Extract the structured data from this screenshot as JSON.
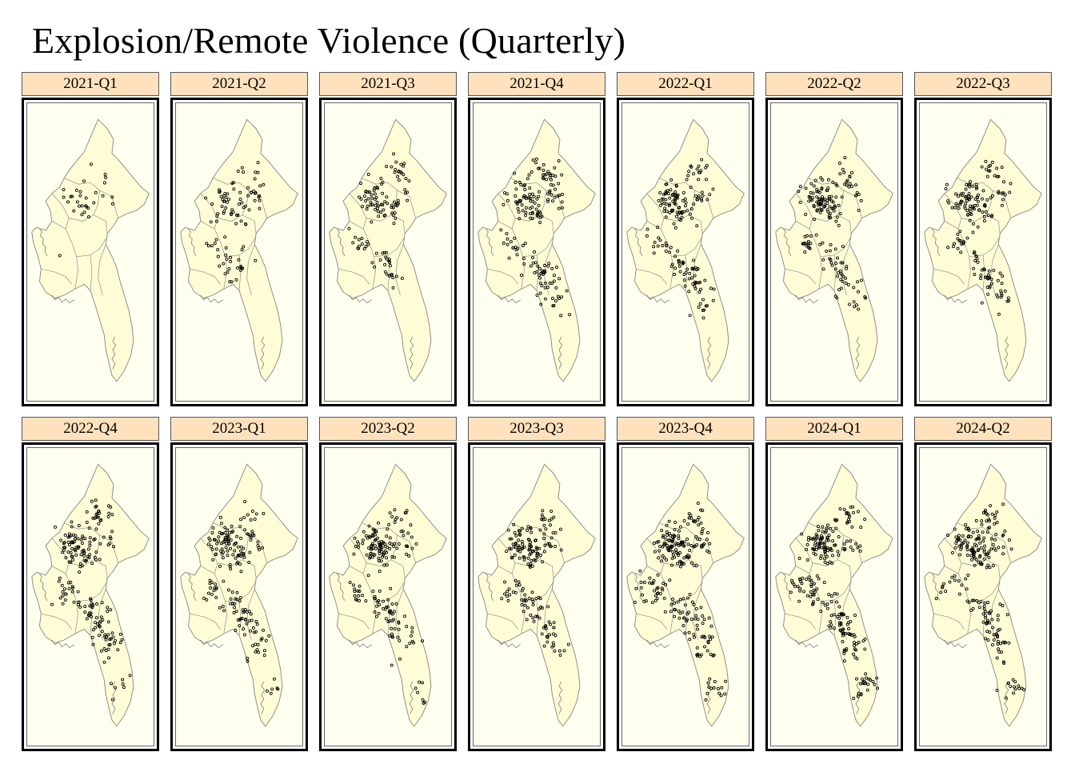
{
  "title": "Explosion/Remote Violence (Quarterly)",
  "map": {
    "country": "Myanmar",
    "land_color": "#fffcd6",
    "background_color": "#fffff0",
    "border_color": "#8c8c8c",
    "marker": "hollow circle",
    "marker_color": "#000000",
    "strip_color": "#ffe2bd"
  },
  "panels": [
    {
      "label": "2021-Q1",
      "intensity": 0.07
    },
    {
      "label": "2021-Q2",
      "intensity": 0.32
    },
    {
      "label": "2021-Q3",
      "intensity": 0.42
    },
    {
      "label": "2021-Q4",
      "intensity": 0.62
    },
    {
      "label": "2022-Q1",
      "intensity": 0.62
    },
    {
      "label": "2022-Q2",
      "intensity": 0.62
    },
    {
      "label": "2022-Q3",
      "intensity": 0.58
    },
    {
      "label": "2022-Q4",
      "intensity": 0.72
    },
    {
      "label": "2023-Q1",
      "intensity": 0.68
    },
    {
      "label": "2023-Q2",
      "intensity": 0.68
    },
    {
      "label": "2023-Q3",
      "intensity": 0.62
    },
    {
      "label": "2023-Q4",
      "intensity": 0.88
    },
    {
      "label": "2024-Q1",
      "intensity": 0.9
    },
    {
      "label": "2024-Q2",
      "intensity": 0.78
    }
  ]
}
